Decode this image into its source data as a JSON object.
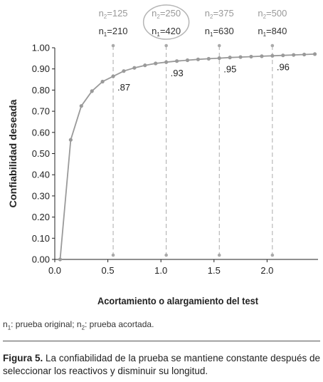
{
  "chart_data": {
    "type": "line",
    "xlabel": "Acortamiento o alargamiento del test",
    "ylabel": "Confiabilidad deseada",
    "xlim": [
      0,
      2.48
    ],
    "ylim": [
      0,
      1.0
    ],
    "xticks": [
      "0.0",
      "0.5",
      "1.0",
      "1.5",
      "2.0"
    ],
    "xtick_values": [
      0,
      0.5,
      1.0,
      1.5,
      2.0
    ],
    "yticks": [
      "0.00",
      "0.10",
      "0.20",
      "0.30",
      "0.40",
      "0.50",
      "0.60",
      "0.70",
      "0.80",
      "0.90",
      "1.00"
    ],
    "ytick_values": [
      0,
      0.1,
      0.2,
      0.3,
      0.4,
      0.5,
      0.6,
      0.7,
      0.8,
      0.9,
      1.0
    ],
    "grid": false,
    "series": [
      {
        "x": [
          0.05,
          0.15,
          0.25,
          0.35,
          0.45,
          0.55,
          0.65,
          0.75,
          0.85,
          0.95,
          1.05,
          1.15,
          1.25,
          1.35,
          1.45,
          1.55,
          1.65,
          1.75,
          1.85,
          1.95,
          2.05,
          2.15,
          2.25,
          2.35,
          2.45
        ],
        "y": [
          0.0,
          0.565,
          0.725,
          0.795,
          0.84,
          0.865,
          0.89,
          0.905,
          0.917,
          0.926,
          0.932,
          0.937,
          0.941,
          0.945,
          0.948,
          0.951,
          0.954,
          0.956,
          0.958,
          0.96,
          0.962,
          0.964,
          0.966,
          0.968,
          0.97
        ],
        "color": "#9a9a9a"
      }
    ],
    "markers": [
      {
        "x": 0.55,
        "y": 0.865,
        "label": ".87",
        "n2": "n2=125",
        "n1": "n1=210",
        "highlight": false
      },
      {
        "x": 1.05,
        "y": 0.932,
        "label": ".93",
        "n2": "n2=250",
        "n1": "n1=420",
        "highlight": true
      },
      {
        "x": 1.55,
        "y": 0.951,
        "label": ".95",
        "n2": "n2=375",
        "n1": "n1=630",
        "highlight": false
      },
      {
        "x": 2.05,
        "y": 0.962,
        "label": ".96",
        "n2": "n2=500",
        "n1": "n1=840",
        "highlight": false
      }
    ]
  },
  "footnote": {
    "n1_sym": "n",
    "n1_sub": "1",
    "n1_text": ": prueba original; ",
    "n2_sym": "n",
    "n2_sub": "2",
    "n2_text": ": prueba acortada."
  },
  "caption": {
    "label": "Figura 5.",
    "text": " La confiabilidad de la prueba se mantiene constante después de seleccionar los reactivos y disminuir su longitud."
  }
}
